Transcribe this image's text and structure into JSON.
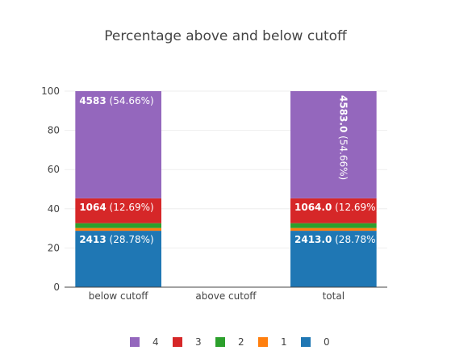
{
  "chart_data": {
    "type": "bar",
    "stacked": true,
    "title": "Percentage above and below cutoff",
    "xlabel": "",
    "ylabel": "",
    "categories": [
      "below cutoff",
      "above cutoff",
      "total"
    ],
    "ylim": [
      0,
      100
    ],
    "yticks": [
      0,
      20,
      40,
      60,
      80,
      100
    ],
    "grid": true,
    "legend_position": "bottom",
    "series": [
      {
        "name": "0",
        "color": "#1f77b4",
        "values": [
          28.78,
          0,
          28.78
        ],
        "labels": [
          {
            "bold": "2413",
            "rest": " (28.78%)"
          },
          null,
          {
            "bold": "2413.0",
            "rest": " (28.78%)"
          }
        ]
      },
      {
        "name": "1",
        "color": "#ff7f0e",
        "values": [
          1.4,
          0,
          1.4
        ],
        "labels": [
          null,
          null,
          null
        ]
      },
      {
        "name": "2",
        "color": "#2ca02c",
        "values": [
          2.47,
          0,
          2.47
        ],
        "labels": [
          null,
          null,
          null
        ]
      },
      {
        "name": "3",
        "color": "#d62728",
        "values": [
          12.69,
          0,
          12.69
        ],
        "labels": [
          {
            "bold": "1064",
            "rest": " (12.69%)"
          },
          null,
          {
            "bold": "1064.0",
            "rest": " (12.69%)"
          }
        ]
      },
      {
        "name": "4",
        "color": "#9467bd",
        "values": [
          54.66,
          0,
          54.66
        ],
        "labels": [
          {
            "bold": "4583",
            "rest": " (54.66%)"
          },
          null,
          {
            "bold": "4583.0",
            "rest": " (54.66%)",
            "rotated": true
          }
        ]
      }
    ],
    "legend_order": [
      "4",
      "3",
      "2",
      "1",
      "0"
    ]
  }
}
